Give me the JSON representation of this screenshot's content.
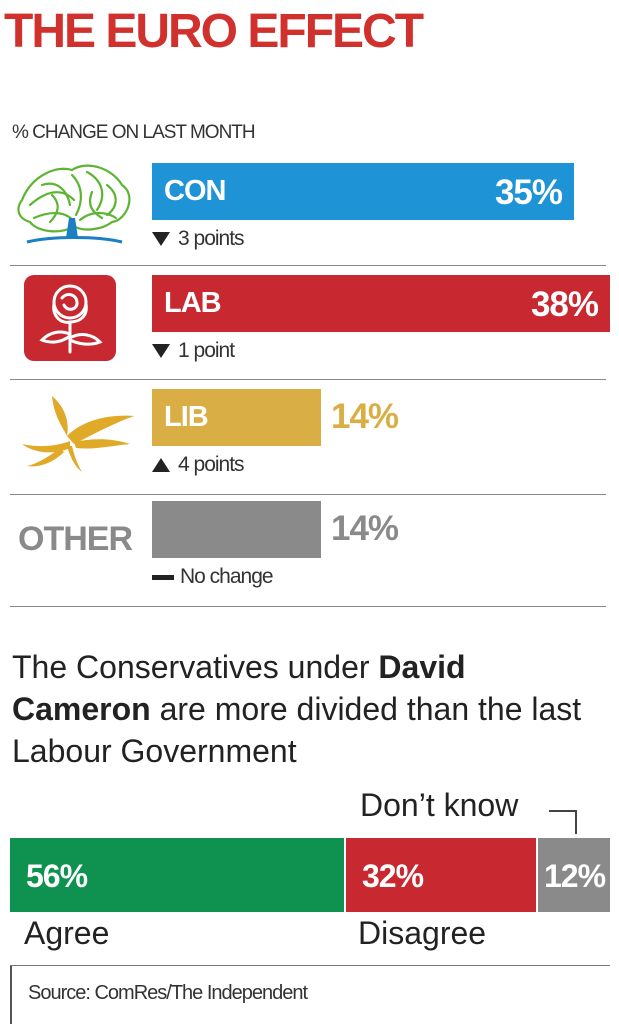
{
  "title": "THE EURO EFFECT",
  "subtitle": "% CHANGE ON LAST MONTH",
  "colors": {
    "title": "#d0312d",
    "con": "#1e93d6",
    "lab": "#c8282f",
    "lib": "#d9ae45",
    "other": "#8a8a8a",
    "agree": "#0f9250",
    "disagree": "#c8282f",
    "dont_know": "#8a8a8a"
  },
  "chart_data": [
    {
      "type": "bar",
      "title": "THE EURO EFFECT",
      "subtitle": "% CHANGE ON LAST MONTH",
      "categories": [
        "CON",
        "LAB",
        "LIB",
        "OTHER"
      ],
      "values": [
        35,
        38,
        14,
        14
      ],
      "value_labels": [
        "35%",
        "38%",
        "14%",
        "14%"
      ],
      "changes": [
        "3 points",
        "1 point",
        "4 points",
        "No change"
      ],
      "change_direction": [
        "down",
        "down",
        "up",
        "none"
      ],
      "logos": [
        "conservative-tree-logo",
        "labour-rose-logo",
        "libdem-bird-logo",
        null
      ],
      "xlim": [
        0,
        38
      ]
    },
    {
      "type": "bar",
      "stacked": true,
      "question_parts": [
        {
          "text": "The Conservatives under ",
          "bold": false
        },
        {
          "text": "David Cameron",
          "bold": true
        },
        {
          "text": " are more divided than the last Labour Government",
          "bold": false
        }
      ],
      "categories": [
        "Agree",
        "Disagree",
        "Don’t know"
      ],
      "values": [
        56,
        32,
        12
      ],
      "value_labels": [
        "56%",
        "32%",
        "12%"
      ]
    }
  ],
  "source": "Source: ComRes/The Independent"
}
